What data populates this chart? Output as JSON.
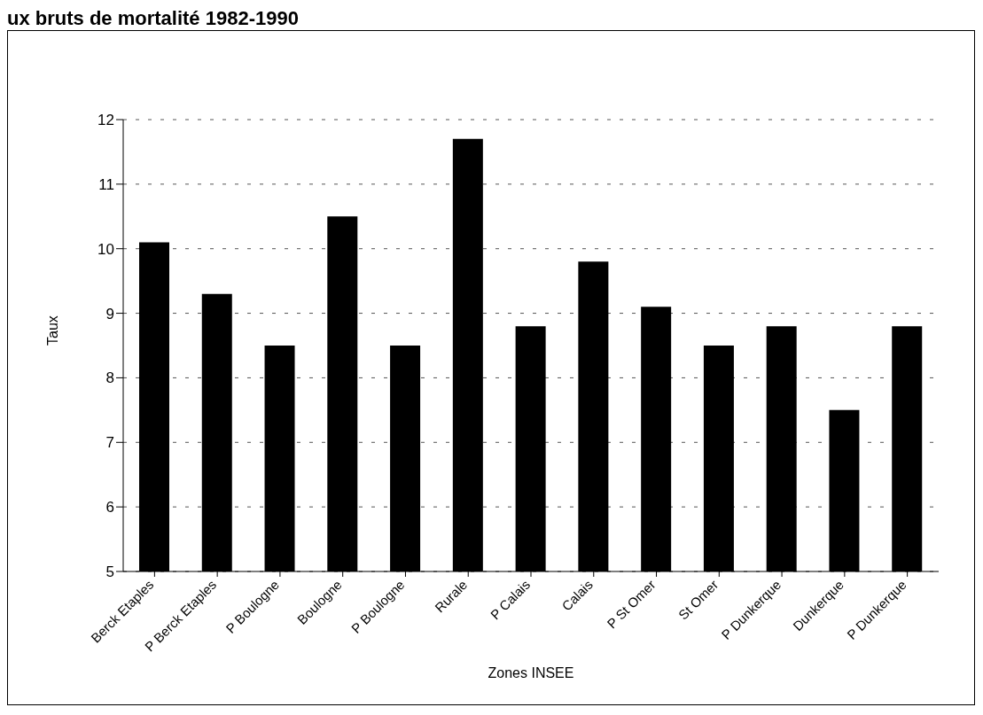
{
  "chart_data": {
    "type": "bar",
    "title": "ux bruts de mortalité 1982-1990",
    "xlabel": "Zones INSEE",
    "ylabel": "Taux",
    "categories": [
      "Berck Etaples",
      "P Berck Etaples",
      "P Boulogne",
      "Boulogne",
      "P Boulogne",
      "Rurale",
      "P Calais",
      "Calais",
      "P St Omer",
      "St Omer",
      "P Dunkerque",
      "Dunkerque",
      "P Dunkerque"
    ],
    "values": [
      10.1,
      9.3,
      8.5,
      10.5,
      8.5,
      11.7,
      8.8,
      9.8,
      9.1,
      8.5,
      8.8,
      7.5,
      8.8
    ],
    "color": "#000000",
    "ylim": [
      5,
      12
    ],
    "yticks": [
      5,
      6,
      7,
      8,
      9,
      10,
      11,
      12
    ],
    "grid": "y",
    "legend": false
  }
}
